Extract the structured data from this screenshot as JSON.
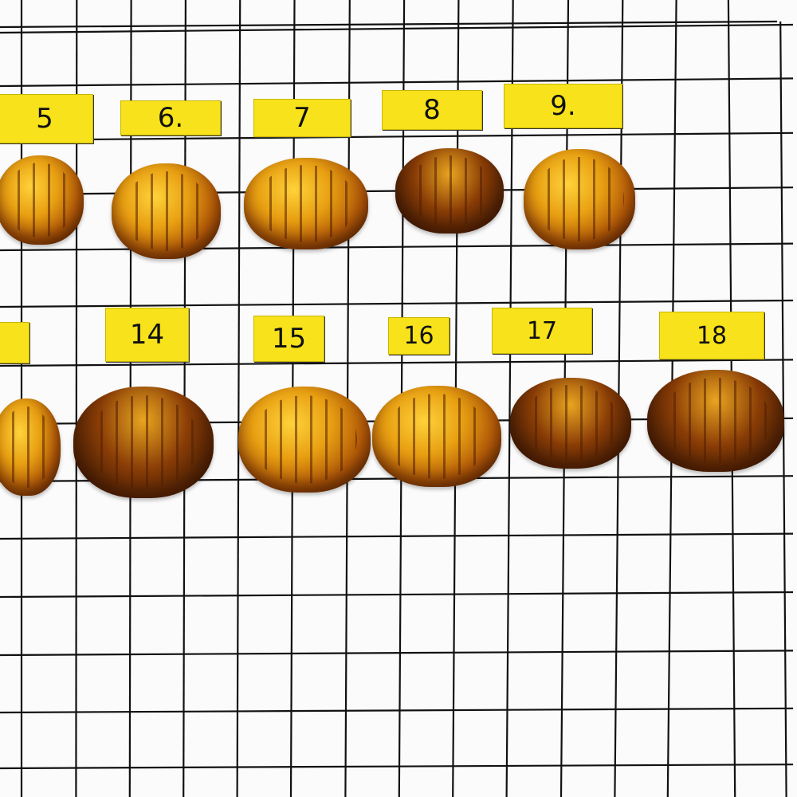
{
  "labels": {
    "row1": [
      "5",
      "6.",
      "7",
      "8",
      "9."
    ],
    "row2": [
      "14",
      "15",
      "16",
      "17",
      "18"
    ]
  },
  "colors": {
    "tag": "#f7e21b",
    "grid": "#111111",
    "amber": "#e8a012"
  }
}
